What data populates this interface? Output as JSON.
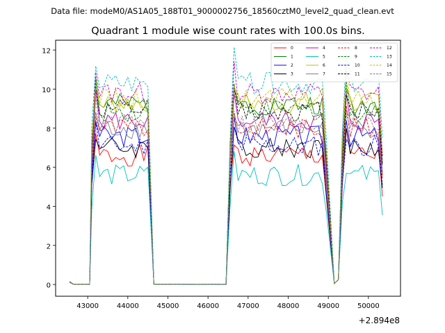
{
  "header": {
    "suptitle": "Data file: modeM0/AS1A05_188T01_9000002756_18560cztM0_level2_quad_clean.evt"
  },
  "chart_data": {
    "type": "line",
    "title": "Quadrant 1 module wise count rates with 100.0s bins.",
    "xlabel": "",
    "ylabel": "",
    "x_offset_label": "+2.894e8",
    "xlim": [
      42200,
      50800
    ],
    "ylim": [
      -0.6,
      12.5
    ],
    "xticks": [
      43000,
      44000,
      45000,
      46000,
      47000,
      48000,
      49000,
      50000
    ],
    "xtick_labels": [
      "43000",
      "44000",
      "45000",
      "46000",
      "47000",
      "48000",
      "49000",
      "50000"
    ],
    "yticks": [
      0,
      2,
      4,
      6,
      8,
      10,
      12
    ],
    "ytick_labels": [
      "0",
      "2",
      "4",
      "6",
      "8",
      "10",
      "12"
    ],
    "legend_position": "top-right",
    "segments": [
      {
        "start": 42550,
        "end": 43050,
        "phase": "off"
      },
      {
        "start": 43100,
        "end": 44550,
        "phase": "on"
      },
      {
        "start": 44650,
        "end": 46450,
        "phase": "off"
      },
      {
        "start": 46550,
        "end": 48950,
        "phase": "on"
      },
      {
        "start": 49150,
        "end": 49250,
        "phase": "off"
      },
      {
        "start": 49350,
        "end": 50350,
        "phase": "on"
      }
    ],
    "series": [
      {
        "name": "0",
        "color": "#ff0000",
        "dash": "solid",
        "mean": 6.6,
        "seed": 1
      },
      {
        "name": "1",
        "color": "#008000",
        "dash": "solid",
        "mean": 9.2,
        "seed": 2
      },
      {
        "name": "2",
        "color": "#0000ff",
        "dash": "solid",
        "mean": 7.6,
        "seed": 3
      },
      {
        "name": "3",
        "color": "#000000",
        "dash": "solid",
        "mean": 7.0,
        "seed": 4
      },
      {
        "name": "4",
        "color": "#bf00bf",
        "dash": "solid",
        "mean": 8.4,
        "seed": 5
      },
      {
        "name": "5",
        "color": "#00bfbf",
        "dash": "solid",
        "mean": 5.6,
        "seed": 6
      },
      {
        "name": "6",
        "color": "#bfbf00",
        "dash": "solid",
        "mean": 9.3,
        "seed": 7
      },
      {
        "name": "7",
        "color": "#808080",
        "dash": "solid",
        "mean": 8.0,
        "seed": 8
      },
      {
        "name": "8",
        "color": "#ff0000",
        "dash": "dashed",
        "mean": 8.0,
        "seed": 9
      },
      {
        "name": "9",
        "color": "#008000",
        "dash": "dashed",
        "mean": 8.9,
        "seed": 10
      },
      {
        "name": "10",
        "color": "#0000ff",
        "dash": "dashed",
        "mean": 7.1,
        "seed": 11
      },
      {
        "name": "11",
        "color": "#000000",
        "dash": "dashed",
        "mean": 8.9,
        "seed": 12
      },
      {
        "name": "12",
        "color": "#bf00bf",
        "dash": "dashed",
        "mean": 9.8,
        "seed": 13
      },
      {
        "name": "13",
        "color": "#00bfbf",
        "dash": "dashed",
        "mean": 10.3,
        "seed": 14
      },
      {
        "name": "14",
        "color": "#bfbf00",
        "dash": "dashed",
        "mean": 9.5,
        "seed": 15
      },
      {
        "name": "15",
        "color": "#808080",
        "dash": "dashed",
        "mean": 8.2,
        "seed": 16
      }
    ]
  }
}
